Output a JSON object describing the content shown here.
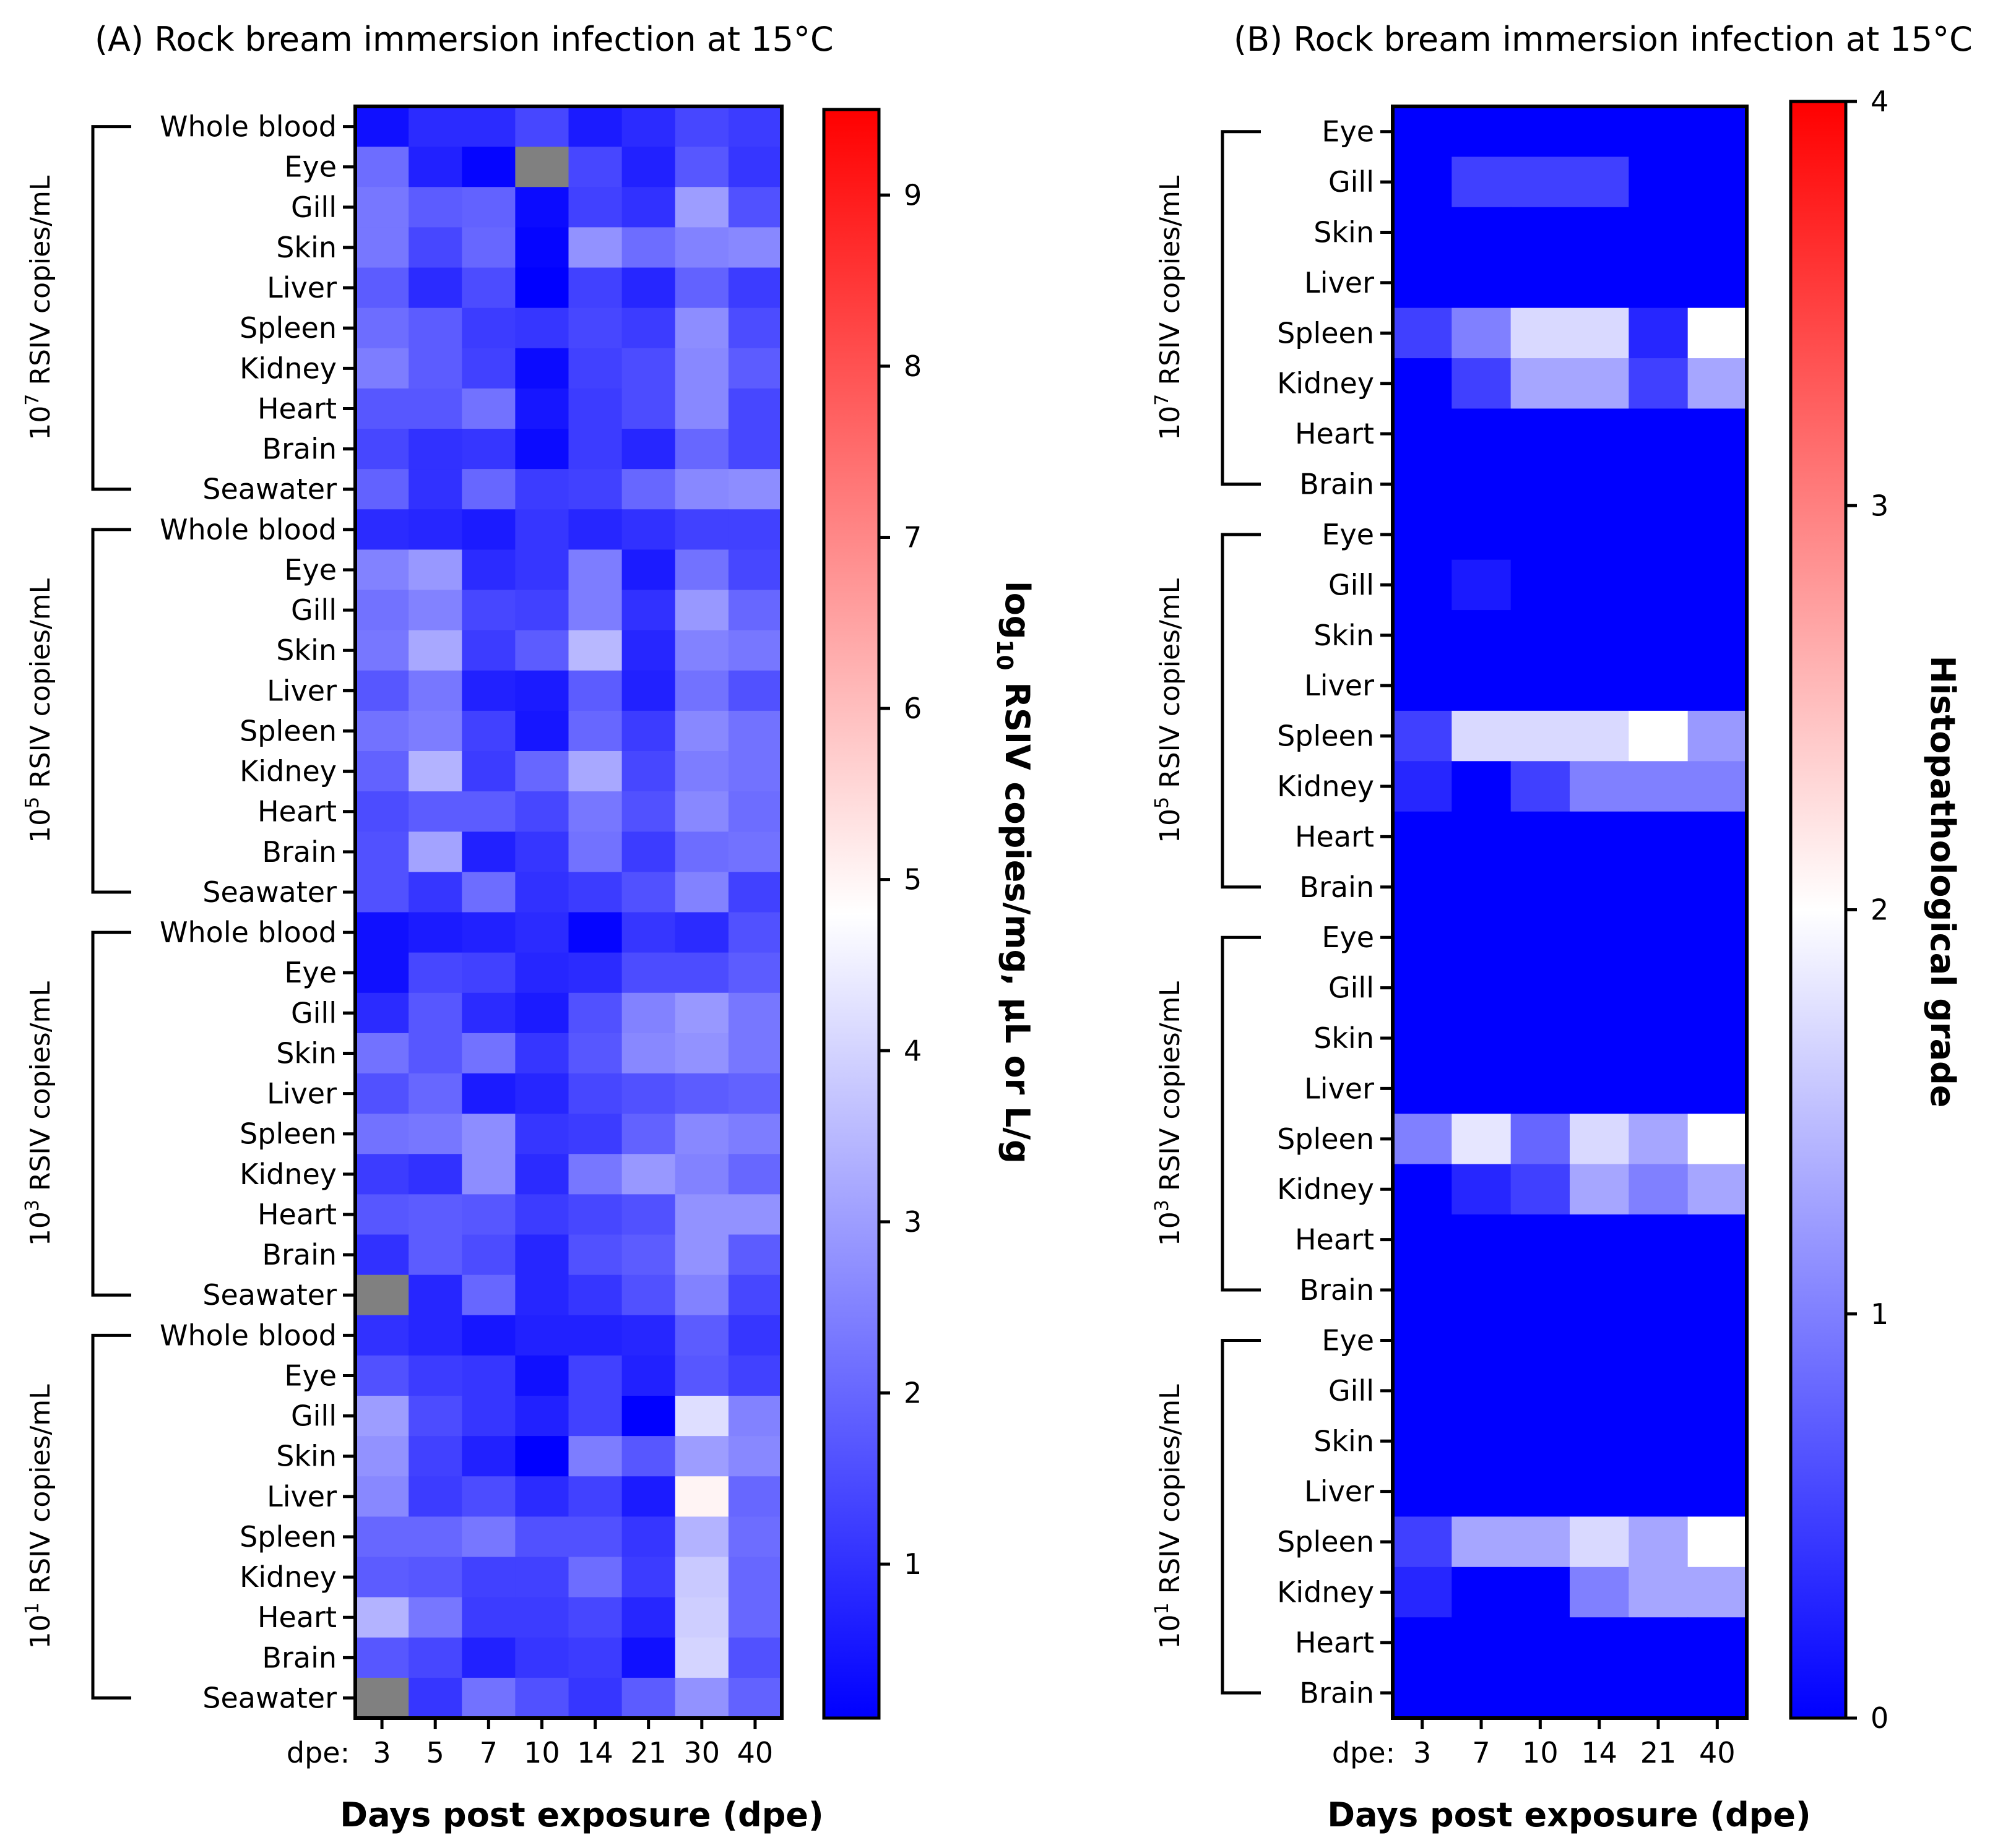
{
  "chart_data": [
    {
      "type": "heatmap",
      "title": "(A) Rock bream immersion infection at 15°C",
      "xlabel": "Days post exposure (dpe)",
      "x_prefix": "dpe:",
      "x": [
        "3",
        "5",
        "7",
        "10",
        "14",
        "21",
        "30",
        "40"
      ],
      "colorbar_label": "log10 RSIV copies/mg, µL or L/g",
      "colorbar_label_parts": [
        "log",
        "10",
        " RSIV copies/mg, µL or L/g"
      ],
      "colorbar_ticks": [
        "1",
        "2",
        "3",
        "4",
        "5",
        "6",
        "7",
        "8",
        "9"
      ],
      "colorbar_range": [
        0.1,
        9.5
      ],
      "colors": {
        "low": "#0000ff",
        "mid": "#ffffff",
        "high": "#ff0000",
        "missing": "#808080"
      },
      "groups": [
        {
          "label_base": "10",
          "label_exp": "7",
          "label_rest": " RSIV copies/mL",
          "rows": [
            "Whole blood",
            "Eye",
            "Gill",
            "Skin",
            "Liver",
            "Spleen",
            "Kidney",
            "Heart",
            "Brain",
            "Seawater"
          ],
          "values": [
            [
              0.4,
              0.9,
              0.9,
              1.4,
              0.6,
              0.9,
              1.4,
              1.2
            ],
            [
              2.1,
              0.7,
              0.2,
              null,
              1.4,
              0.7,
              1.7,
              1.1
            ],
            [
              2.3,
              1.8,
              1.9,
              0.3,
              1.3,
              1.0,
              3.0,
              1.6
            ],
            [
              2.3,
              1.4,
              2.0,
              0.2,
              2.8,
              2.1,
              2.5,
              2.6
            ],
            [
              1.8,
              0.9,
              1.5,
              0.1,
              1.3,
              0.8,
              1.9,
              1.2
            ],
            [
              2.1,
              1.8,
              1.2,
              1.1,
              1.4,
              1.2,
              2.7,
              1.5
            ],
            [
              2.4,
              1.8,
              1.3,
              0.3,
              1.3,
              1.5,
              2.6,
              1.8
            ],
            [
              1.7,
              1.7,
              2.2,
              0.5,
              1.2,
              1.5,
              2.6,
              1.4
            ],
            [
              1.4,
              1.0,
              1.1,
              0.3,
              1.2,
              0.8,
              2.0,
              1.4
            ],
            [
              1.9,
              1.0,
              2.0,
              1.2,
              1.3,
              2.0,
              2.6,
              2.7
            ]
          ]
        },
        {
          "label_base": "10",
          "label_exp": "5",
          "label_rest": " RSIV copies/mL",
          "rows": [
            "Whole blood",
            "Eye",
            "Gill",
            "Skin",
            "Liver",
            "Spleen",
            "Kidney",
            "Heart",
            "Brain",
            "Seawater"
          ],
          "values": [
            [
              0.9,
              0.8,
              0.6,
              1.1,
              0.8,
              1.0,
              1.3,
              1.3
            ],
            [
              2.5,
              2.9,
              0.9,
              1.1,
              2.4,
              0.6,
              2.2,
              1.4
            ],
            [
              2.2,
              2.5,
              1.4,
              1.3,
              2.4,
              1.0,
              2.9,
              2.0
            ],
            [
              2.3,
              3.2,
              1.2,
              1.8,
              3.5,
              0.8,
              2.5,
              2.3
            ],
            [
              1.7,
              2.3,
              0.7,
              0.6,
              1.8,
              0.7,
              2.2,
              1.6
            ],
            [
              2.2,
              2.4,
              1.3,
              0.5,
              2.0,
              1.2,
              2.6,
              2.2
            ],
            [
              1.9,
              3.4,
              1.2,
              2.0,
              3.2,
              1.4,
              2.4,
              2.2
            ],
            [
              1.5,
              1.8,
              1.8,
              1.4,
              2.3,
              1.6,
              2.6,
              2.1
            ],
            [
              1.6,
              3.1,
              0.7,
              1.1,
              2.2,
              1.2,
              2.1,
              2.2
            ],
            [
              1.6,
              1.1,
              2.1,
              1.0,
              1.2,
              1.6,
              2.5,
              1.3
            ]
          ]
        },
        {
          "label_base": "10",
          "label_exp": "3",
          "label_rest": " RSIV copies/mL",
          "rows": [
            "Whole blood",
            "Eye",
            "Gill",
            "Skin",
            "Liver",
            "Spleen",
            "Kidney",
            "Heart",
            "Brain",
            "Seawater"
          ],
          "values": [
            [
              0.4,
              0.6,
              0.7,
              0.9,
              0.2,
              1.1,
              0.9,
              1.6
            ],
            [
              0.4,
              1.4,
              1.3,
              0.8,
              0.9,
              1.5,
              1.5,
              1.8
            ],
            [
              0.9,
              1.7,
              0.9,
              0.6,
              1.6,
              2.5,
              2.9,
              2.3
            ],
            [
              2.2,
              1.7,
              2.2,
              1.1,
              1.7,
              2.6,
              2.8,
              2.3
            ],
            [
              1.6,
              2.0,
              0.6,
              0.8,
              1.4,
              1.6,
              1.8,
              1.9
            ],
            [
              2.2,
              2.3,
              2.7,
              1.1,
              1.2,
              1.9,
              2.6,
              2.4
            ],
            [
              1.2,
              1.0,
              2.7,
              0.9,
              2.3,
              2.9,
              2.5,
              2.0
            ],
            [
              1.7,
              1.8,
              1.7,
              1.2,
              1.4,
              1.6,
              2.8,
              2.8
            ],
            [
              1.0,
              1.8,
              1.5,
              0.8,
              1.6,
              1.8,
              2.8,
              1.8
            ],
            [
              null,
              0.8,
              2.0,
              0.8,
              1.1,
              1.6,
              2.5,
              1.4
            ]
          ]
        },
        {
          "label_base": "10",
          "label_exp": "1",
          "label_rest": " RSIV copies/mL",
          "rows": [
            "Whole blood",
            "Eye",
            "Gill",
            "Skin",
            "Liver",
            "Spleen",
            "Kidney",
            "Heart",
            "Brain",
            "Seawater"
          ],
          "values": [
            [
              1.0,
              0.8,
              0.5,
              0.7,
              0.7,
              0.8,
              1.8,
              1.1
            ],
            [
              1.6,
              1.2,
              1.1,
              0.4,
              1.3,
              0.7,
              1.7,
              1.3
            ],
            [
              3.0,
              1.5,
              1.1,
              0.7,
              1.3,
              0.1,
              4.2,
              2.5
            ],
            [
              2.8,
              1.3,
              0.7,
              0.1,
              2.4,
              1.7,
              3.0,
              2.6
            ],
            [
              2.6,
              1.2,
              1.5,
              0.9,
              1.3,
              0.6,
              5.0,
              2.0
            ],
            [
              2.0,
              2.0,
              2.3,
              1.6,
              1.6,
              1.1,
              3.4,
              2.1
            ],
            [
              1.8,
              1.7,
              1.3,
              1.3,
              2.1,
              1.2,
              3.8,
              2.0
            ],
            [
              3.4,
              2.3,
              1.2,
              1.2,
              1.4,
              0.8,
              3.9,
              2.0
            ],
            [
              1.7,
              1.4,
              0.7,
              1.1,
              1.2,
              0.4,
              4.0,
              1.6
            ],
            [
              null,
              1.1,
              2.2,
              1.6,
              1.1,
              1.8,
              2.8,
              1.9
            ]
          ]
        }
      ]
    },
    {
      "type": "heatmap",
      "title": "(B) Rock bream immersion infection at 15°C",
      "xlabel": "Days post exposure (dpe)",
      "x_prefix": "dpe:",
      "x": [
        "3",
        "7",
        "10",
        "14",
        "21",
        "40"
      ],
      "colorbar_label": "Histopathological grade",
      "colorbar_ticks": [
        "0",
        "1",
        "2",
        "3",
        "4"
      ],
      "colorbar_range": [
        0,
        4
      ],
      "colors": {
        "low": "#0000ff",
        "mid": "#ffffff",
        "high": "#ff0000"
      },
      "groups": [
        {
          "label_base": "10",
          "label_exp": "7",
          "label_rest": " RSIV copies/mL",
          "rows": [
            "Eye",
            "Gill",
            "Skin",
            "Liver",
            "Spleen",
            "Kidney",
            "Heart",
            "Brain"
          ],
          "values": [
            [
              0,
              0,
              0,
              0,
              0,
              0
            ],
            [
              0,
              0.5,
              0.5,
              0.5,
              0,
              0
            ],
            [
              0,
              0,
              0,
              0,
              0,
              0
            ],
            [
              0,
              0,
              0,
              0,
              0,
              0
            ],
            [
              0.5,
              1.0,
              1.7,
              1.7,
              0.3,
              2.0
            ],
            [
              0,
              0.5,
              1.3,
              1.3,
              0.5,
              1.3
            ],
            [
              0,
              0,
              0,
              0,
              0,
              0
            ],
            [
              0,
              0,
              0,
              0,
              0,
              0
            ]
          ]
        },
        {
          "label_base": "10",
          "label_exp": "5",
          "label_rest": " RSIV copies/mL",
          "rows": [
            "Eye",
            "Gill",
            "Skin",
            "Liver",
            "Spleen",
            "Kidney",
            "Heart",
            "Brain"
          ],
          "values": [
            [
              0,
              0,
              0,
              0,
              0,
              0
            ],
            [
              0,
              0.2,
              0,
              0,
              0,
              0
            ],
            [
              0,
              0,
              0,
              0,
              0,
              0
            ],
            [
              0,
              0,
              0,
              0,
              0,
              0
            ],
            [
              0.5,
              1.7,
              1.7,
              1.7,
              2.0,
              1.2
            ],
            [
              0.3,
              0,
              0.5,
              1.0,
              1.0,
              1.0
            ],
            [
              0,
              0,
              0,
              0,
              0,
              0
            ],
            [
              0,
              0,
              0,
              0,
              0,
              0
            ]
          ]
        },
        {
          "label_base": "10",
          "label_exp": "3",
          "label_rest": " RSIV copies/mL",
          "rows": [
            "Eye",
            "Gill",
            "Skin",
            "Liver",
            "Spleen",
            "Kidney",
            "Heart",
            "Brain"
          ],
          "values": [
            [
              0,
              0,
              0,
              0,
              0,
              0
            ],
            [
              0,
              0,
              0,
              0,
              0,
              0
            ],
            [
              0,
              0,
              0,
              0,
              0,
              0
            ],
            [
              0,
              0,
              0,
              0,
              0,
              0
            ],
            [
              1.0,
              1.8,
              0.8,
              1.7,
              1.3,
              2.0
            ],
            [
              0,
              0.3,
              0.5,
              1.3,
              1.0,
              1.3
            ],
            [
              0,
              0,
              0,
              0,
              0,
              0
            ],
            [
              0,
              0,
              0,
              0,
              0,
              0
            ]
          ]
        },
        {
          "label_base": "10",
          "label_exp": "1",
          "label_rest": " RSIV copies/mL",
          "rows": [
            "Eye",
            "Gill",
            "Skin",
            "Liver",
            "Spleen",
            "Kidney",
            "Heart",
            "Brain"
          ],
          "values": [
            [
              0,
              0,
              0,
              0,
              0,
              0
            ],
            [
              0,
              0,
              0,
              0,
              0,
              0
            ],
            [
              0,
              0,
              0,
              0,
              0,
              0
            ],
            [
              0,
              0,
              0,
              0,
              0,
              0
            ],
            [
              0.5,
              1.3,
              1.3,
              1.7,
              1.3,
              2.0
            ],
            [
              0.3,
              0,
              0,
              1.0,
              1.3,
              1.3
            ],
            [
              0,
              0,
              0,
              0,
              0,
              0
            ],
            [
              0,
              0,
              0,
              0,
              0,
              0
            ]
          ]
        }
      ]
    }
  ]
}
